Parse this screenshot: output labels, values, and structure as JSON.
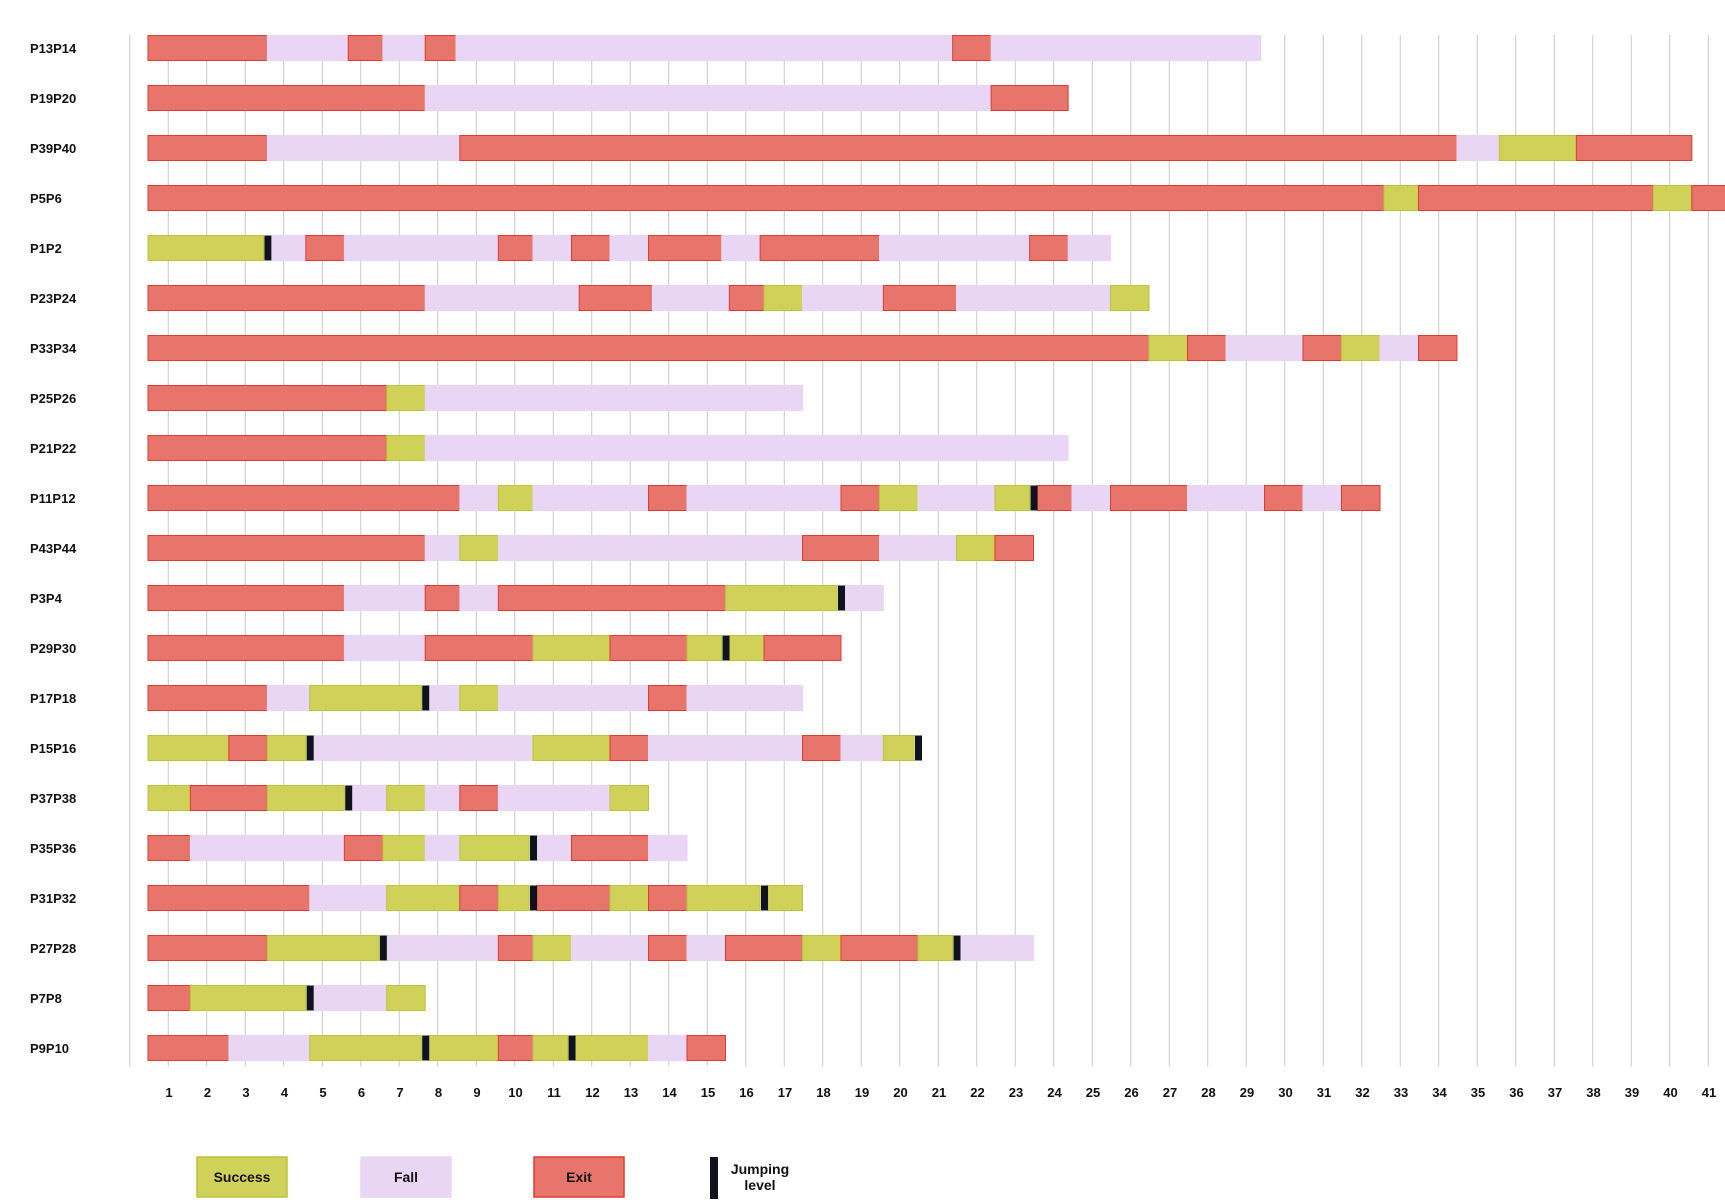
{
  "colors": {
    "success": "#cfd158",
    "success_stroke": "#b9c43a",
    "fall": "#e8d6f4",
    "exit": "#e8756c",
    "exit_stroke": "#e03b30",
    "jump": "#10131d"
  },
  "legend": [
    {
      "key": "success",
      "label": "Success"
    },
    {
      "key": "fall",
      "label": "Fall"
    },
    {
      "key": "exit",
      "label": "Exit"
    },
    {
      "key": "jump",
      "label": "Jumping level"
    }
  ],
  "chart_data": {
    "type": "timeline",
    "x_ticks": [
      1,
      2,
      3,
      4,
      5,
      6,
      7,
      8,
      9,
      10,
      11,
      12,
      13,
      14,
      15,
      16,
      17,
      18,
      19,
      20,
      21,
      22,
      23,
      24,
      25,
      26,
      27,
      28,
      29,
      30,
      31,
      32,
      33,
      34,
      35,
      36,
      37,
      38,
      39,
      40,
      41
    ],
    "xlim": [
      1,
      41
    ],
    "grid": true,
    "legend_position": "bottom-left",
    "rows": [
      {
        "label": "P13P14",
        "segments": [
          [
            "exit",
            1,
            4.1
          ],
          [
            "fall",
            4.1,
            6.2
          ],
          [
            "exit",
            6.2,
            7.1
          ],
          [
            "fall",
            7.1,
            8.2
          ],
          [
            "exit",
            8.2,
            9
          ],
          [
            "fall",
            9,
            21.9
          ],
          [
            "exit",
            21.9,
            22.9
          ],
          [
            "fall",
            22.9,
            29.9
          ]
        ],
        "jumps": []
      },
      {
        "label": "P19P20",
        "segments": [
          [
            "exit",
            1,
            8.2
          ],
          [
            "fall",
            8.2,
            22.9
          ],
          [
            "exit",
            22.9,
            24.9
          ]
        ],
        "jumps": []
      },
      {
        "label": "P39P40",
        "segments": [
          [
            "exit",
            1,
            4.1
          ],
          [
            "fall",
            4.1,
            9.1
          ],
          [
            "exit",
            9.1,
            35
          ],
          [
            "fall",
            35,
            36.1
          ],
          [
            "success",
            36.1,
            38.1
          ],
          [
            "exit",
            38.1,
            41.1
          ]
        ],
        "jumps": []
      },
      {
        "label": "P5P6",
        "segments": [
          [
            "exit",
            1,
            33.1
          ],
          [
            "success",
            33.1,
            34
          ],
          [
            "exit",
            34,
            40.1
          ],
          [
            "success",
            40.1,
            41.1
          ],
          [
            "exit",
            41.1,
            42
          ]
        ],
        "jumps": []
      },
      {
        "label": "P1P2",
        "segments": [
          [
            "success",
            1,
            4
          ],
          [
            "fall",
            4.2,
            5.1
          ],
          [
            "exit",
            5.1,
            6.1
          ],
          [
            "fall",
            6.1,
            10.1
          ],
          [
            "exit",
            10.1,
            11
          ],
          [
            "fall",
            11,
            12
          ],
          [
            "exit",
            12,
            13
          ],
          [
            "fall",
            13,
            14
          ],
          [
            "exit",
            14,
            15.9
          ],
          [
            "fall",
            15.9,
            16.9
          ],
          [
            "exit",
            16.9,
            20
          ],
          [
            "fall",
            20,
            23.9
          ],
          [
            "exit",
            23.9,
            24.9
          ],
          [
            "fall",
            24.9,
            26
          ]
        ],
        "jumps": [
          4.1
        ]
      },
      {
        "label": "P23P24",
        "segments": [
          [
            "exit",
            1,
            8.2
          ],
          [
            "fall",
            8.2,
            12.2
          ],
          [
            "exit",
            12.2,
            14.1
          ],
          [
            "fall",
            14.1,
            16.1
          ],
          [
            "exit",
            16.1,
            17
          ],
          [
            "success",
            17,
            18
          ],
          [
            "fall",
            18,
            20.1
          ],
          [
            "exit",
            20.1,
            22
          ],
          [
            "fall",
            22,
            26
          ],
          [
            "success",
            26,
            27
          ]
        ],
        "jumps": []
      },
      {
        "label": "P33P34",
        "segments": [
          [
            "exit",
            1,
            27
          ],
          [
            "success",
            27,
            28
          ],
          [
            "exit",
            28,
            29
          ],
          [
            "fall",
            29,
            31
          ],
          [
            "exit",
            31,
            32
          ],
          [
            "success",
            32,
            33
          ],
          [
            "fall",
            33,
            34
          ],
          [
            "exit",
            34,
            35
          ]
        ],
        "jumps": []
      },
      {
        "label": "P25P26",
        "segments": [
          [
            "exit",
            1,
            7.2
          ],
          [
            "success",
            7.2,
            8.2
          ],
          [
            "fall",
            8.2,
            18
          ]
        ],
        "jumps": []
      },
      {
        "label": "P21P22",
        "segments": [
          [
            "exit",
            1,
            7.2
          ],
          [
            "success",
            7.2,
            8.2
          ],
          [
            "fall",
            8.2,
            24.9
          ]
        ],
        "jumps": []
      },
      {
        "label": "P11P12",
        "segments": [
          [
            "exit",
            1,
            9.1
          ],
          [
            "fall",
            9.1,
            10.1
          ],
          [
            "success",
            10.1,
            11
          ],
          [
            "fall",
            11,
            14
          ],
          [
            "exit",
            14,
            15
          ],
          [
            "fall",
            15,
            19
          ],
          [
            "exit",
            19,
            20
          ],
          [
            "success",
            20,
            21
          ],
          [
            "fall",
            21,
            23
          ],
          [
            "success",
            23,
            23.9
          ],
          [
            "exit",
            24.1,
            25
          ],
          [
            "fall",
            25,
            26
          ],
          [
            "exit",
            26,
            28
          ],
          [
            "fall",
            28,
            30
          ],
          [
            "exit",
            30,
            31
          ],
          [
            "fall",
            31,
            32
          ],
          [
            "exit",
            32,
            33
          ]
        ],
        "jumps": [
          24
        ]
      },
      {
        "label": "P43P44",
        "segments": [
          [
            "exit",
            1,
            8.2
          ],
          [
            "fall",
            8.2,
            9.1
          ],
          [
            "success",
            9.1,
            10.1
          ],
          [
            "fall",
            10.1,
            18
          ],
          [
            "exit",
            18,
            20
          ],
          [
            "fall",
            20,
            22
          ],
          [
            "success",
            22,
            23
          ],
          [
            "exit",
            23,
            24
          ]
        ],
        "jumps": []
      },
      {
        "label": "P3P4",
        "segments": [
          [
            "exit",
            1,
            6.1
          ],
          [
            "fall",
            6.1,
            8.2
          ],
          [
            "exit",
            8.2,
            9.1
          ],
          [
            "fall",
            9.1,
            10.1
          ],
          [
            "exit",
            10.1,
            16
          ],
          [
            "success",
            16,
            18.9
          ],
          [
            "fall",
            19.1,
            20.1
          ]
        ],
        "jumps": [
          19
        ]
      },
      {
        "label": "P29P30",
        "segments": [
          [
            "exit",
            1,
            6.1
          ],
          [
            "fall",
            6.1,
            8.2
          ],
          [
            "exit",
            8.2,
            11
          ],
          [
            "success",
            11,
            13
          ],
          [
            "exit",
            13,
            15
          ],
          [
            "success",
            15,
            15.9
          ],
          [
            "success",
            16.1,
            17
          ],
          [
            "exit",
            17,
            19
          ]
        ],
        "jumps": [
          16
        ]
      },
      {
        "label": "P17P18",
        "segments": [
          [
            "exit",
            1,
            4.1
          ],
          [
            "fall",
            4.1,
            5.2
          ],
          [
            "success",
            5.2,
            8.1
          ],
          [
            "fall",
            8.3,
            9.1
          ],
          [
            "success",
            9.1,
            10.1
          ],
          [
            "fall",
            10.1,
            14
          ],
          [
            "exit",
            14,
            15
          ],
          [
            "fall",
            15,
            18
          ]
        ],
        "jumps": [
          8.2
        ]
      },
      {
        "label": "P15P16",
        "segments": [
          [
            "success",
            1,
            3.1
          ],
          [
            "exit",
            3.1,
            4.1
          ],
          [
            "success",
            4.1,
            5.1
          ],
          [
            "fall",
            5.3,
            11
          ],
          [
            "success",
            11,
            13
          ],
          [
            "exit",
            13,
            14
          ],
          [
            "fall",
            14,
            18
          ],
          [
            "exit",
            18,
            19
          ],
          [
            "fall",
            19,
            20.1
          ],
          [
            "success",
            20.1,
            20.9
          ]
        ],
        "jumps": [
          5.2,
          21
        ]
      },
      {
        "label": "P37P38",
        "segments": [
          [
            "success",
            1,
            2.1
          ],
          [
            "exit",
            2.1,
            4.1
          ],
          [
            "success",
            4.1,
            6.1
          ],
          [
            "fall",
            6.3,
            7.2
          ],
          [
            "success",
            7.2,
            8.2
          ],
          [
            "fall",
            8.2,
            9.1
          ],
          [
            "exit",
            9.1,
            10.1
          ],
          [
            "fall",
            10.1,
            13
          ],
          [
            "success",
            13,
            14
          ]
        ],
        "jumps": [
          6.2
        ]
      },
      {
        "label": "P35P36",
        "segments": [
          [
            "exit",
            1,
            2.1
          ],
          [
            "fall",
            2.1,
            6.1
          ],
          [
            "exit",
            6.1,
            7.1
          ],
          [
            "success",
            7.1,
            8.2
          ],
          [
            "fall",
            8.2,
            9.1
          ],
          [
            "success",
            9.1,
            10.9
          ],
          [
            "fall",
            11.1,
            12
          ],
          [
            "exit",
            12,
            14
          ],
          [
            "fall",
            14,
            15
          ]
        ],
        "jumps": [
          11
        ]
      },
      {
        "label": "P31P32",
        "segments": [
          [
            "exit",
            1,
            5.2
          ],
          [
            "fall",
            5.2,
            7.2
          ],
          [
            "success",
            7.2,
            9.1
          ],
          [
            "exit",
            9.1,
            10.1
          ],
          [
            "success",
            10.1,
            10.9
          ],
          [
            "exit",
            11.1,
            13
          ],
          [
            "success",
            13,
            14
          ],
          [
            "exit",
            14,
            15
          ],
          [
            "success",
            15,
            16.9
          ],
          [
            "success",
            17.1,
            18
          ]
        ],
        "jumps": [
          11,
          17
        ]
      },
      {
        "label": "P27P28",
        "segments": [
          [
            "exit",
            1,
            4.1
          ],
          [
            "success",
            4.1,
            7
          ],
          [
            "fall",
            7.2,
            10.1
          ],
          [
            "exit",
            10.1,
            11
          ],
          [
            "success",
            11,
            12
          ],
          [
            "fall",
            12,
            14
          ],
          [
            "exit",
            14,
            15
          ],
          [
            "fall",
            15,
            16
          ],
          [
            "exit",
            16,
            18
          ],
          [
            "success",
            18,
            19
          ],
          [
            "exit",
            19,
            21
          ],
          [
            "success",
            21,
            21.9
          ],
          [
            "fall",
            22.1,
            24
          ]
        ],
        "jumps": [
          7.1,
          22
        ]
      },
      {
        "label": "P7P8",
        "segments": [
          [
            "exit",
            1,
            2.1
          ],
          [
            "success",
            2.1,
            5.1
          ],
          [
            "fall",
            5.3,
            7.2
          ],
          [
            "success",
            7.2,
            8.2
          ]
        ],
        "jumps": [
          5.2
        ]
      },
      {
        "label": "P9P10",
        "segments": [
          [
            "exit",
            1,
            3.1
          ],
          [
            "fall",
            3.1,
            5.2
          ],
          [
            "success",
            5.2,
            8.1
          ],
          [
            "success",
            8.3,
            10.1
          ],
          [
            "exit",
            10.1,
            11
          ],
          [
            "success",
            11,
            11.9
          ],
          [
            "success",
            12.1,
            14
          ],
          [
            "fall",
            14,
            15
          ],
          [
            "exit",
            15,
            16
          ]
        ],
        "jumps": [
          8.2,
          12
        ]
      }
    ]
  }
}
